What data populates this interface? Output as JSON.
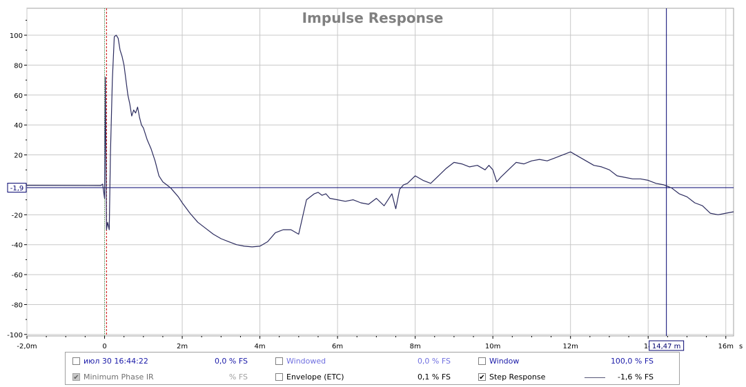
{
  "chart_data": {
    "type": "line",
    "title": "Impulse Response",
    "x_unit": "s",
    "xlim": [
      -2.0,
      16.2
    ],
    "ylim": [
      -101,
      118
    ],
    "x_ticks": [
      {
        "v": -2,
        "label": "-2,0m"
      },
      {
        "v": 0,
        "label": "0"
      },
      {
        "v": 2,
        "label": "2m"
      },
      {
        "v": 4,
        "label": "4m"
      },
      {
        "v": 6,
        "label": "6m"
      },
      {
        "v": 8,
        "label": "8m"
      },
      {
        "v": 10,
        "label": "10m"
      },
      {
        "v": 12,
        "label": "12m"
      },
      {
        "v": 14,
        "label": "14"
      },
      {
        "v": 16,
        "label": "16m"
      }
    ],
    "y_ticks": [
      100,
      80,
      60,
      40,
      20,
      0,
      -20,
      -40,
      -60,
      -80,
      -100
    ],
    "y_tick_labels": [
      "100",
      "80",
      "60",
      "40",
      "20",
      "",
      "-20",
      "-40",
      "-60",
      "-80",
      "-100"
    ],
    "grid": true,
    "series": [
      {
        "name": "Step Response",
        "color": "#2b2b5e",
        "x": [
          -2.0,
          -0.1,
          -0.05,
          0.0,
          0.02,
          0.05,
          0.08,
          0.12,
          0.15,
          0.2,
          0.25,
          0.3,
          0.35,
          0.4,
          0.45,
          0.5,
          0.55,
          0.6,
          0.65,
          0.7,
          0.75,
          0.8,
          0.85,
          0.9,
          0.95,
          1.0,
          1.1,
          1.2,
          1.3,
          1.4,
          1.5,
          1.6,
          1.7,
          1.8,
          1.9,
          2.0,
          2.2,
          2.4,
          2.6,
          2.8,
          3.0,
          3.2,
          3.4,
          3.6,
          3.8,
          4.0,
          4.2,
          4.4,
          4.5,
          4.6,
          4.8,
          5.0,
          5.2,
          5.4,
          5.5,
          5.6,
          5.7,
          5.8,
          6.0,
          6.2,
          6.4,
          6.6,
          6.8,
          7.0,
          7.2,
          7.4,
          7.5,
          7.6,
          7.7,
          7.8,
          8.0,
          8.2,
          8.4,
          8.6,
          8.8,
          9.0,
          9.2,
          9.4,
          9.6,
          9.8,
          9.9,
          10.0,
          10.1,
          10.2,
          10.4,
          10.6,
          10.8,
          11.0,
          11.2,
          11.4,
          11.6,
          11.8,
          12.0,
          12.2,
          12.4,
          12.6,
          12.8,
          13.0,
          13.2,
          13.4,
          13.6,
          13.8,
          14.0,
          14.2,
          14.4,
          14.6,
          14.8,
          15.0,
          15.2,
          15.4,
          15.6,
          15.8,
          16.0,
          16.2
        ],
        "y": [
          -0.3,
          -0.5,
          0.5,
          -9,
          72,
          -30,
          -25,
          -30,
          20,
          70,
          99,
          100,
          98,
          90,
          86,
          80,
          70,
          60,
          54,
          46,
          50,
          48,
          52,
          45,
          40,
          38,
          30,
          24,
          16,
          6,
          2,
          0,
          -2,
          -5,
          -8,
          -12,
          -19,
          -25,
          -29,
          -33,
          -36,
          -38,
          -40,
          -41,
          -41.5,
          -41,
          -38,
          -32,
          -31,
          -30,
          -30,
          -33,
          -10,
          -6,
          -5,
          -7,
          -6,
          -9,
          -10,
          -11,
          -10,
          -12,
          -13,
          -9,
          -14,
          -6,
          -16,
          -3,
          0,
          1,
          6,
          3,
          1,
          6,
          11,
          15,
          14,
          12,
          13,
          10,
          13,
          10,
          2,
          5,
          10,
          15,
          14,
          16,
          17,
          16,
          18,
          20,
          22,
          19,
          16,
          13,
          12,
          10,
          6,
          5,
          4,
          4,
          3,
          1,
          0,
          -2,
          -6,
          -8,
          -12,
          -14,
          -19,
          -20,
          -19,
          -18
        ]
      }
    ],
    "markers": {
      "red_dashed_x": 0.05,
      "blue_cursor_x": 14.47,
      "green_dotted_x": 0.0,
      "hline_y": -1.9,
      "hline_label": "-1,9",
      "cursor_label": "14,47 m",
      "x_unit_label": "s"
    },
    "colors": {
      "background": "#ffffff",
      "grid": "#c8c8c8",
      "axis": "#000000",
      "trace": "#2b2b5e",
      "cursor": "#00006e",
      "red_marker": "#cc0000",
      "title": "#808080"
    }
  },
  "legend": {
    "rows": [
      [
        {
          "label": "июл 30 16:44:22",
          "value": "0,0 % FS",
          "checked": false,
          "disabled": false,
          "label_color": "blue"
        },
        {
          "label": "Windowed",
          "value": "0,0 % FS",
          "checked": false,
          "disabled": false,
          "label_color": "lightblue"
        },
        {
          "label": "Window",
          "value": "100,0 % FS",
          "checked": false,
          "disabled": false,
          "label_color": "blue"
        }
      ],
      [
        {
          "label": "Minimum Phase IR",
          "value": "% FS",
          "checked": true,
          "disabled": true,
          "label_color": "grey"
        },
        {
          "label": "Envelope (ETC)",
          "value": "0,1 % FS",
          "checked": false,
          "disabled": false,
          "label_color": "black"
        },
        {
          "label": "Step Response",
          "value": "-1,6 % FS",
          "checked": true,
          "disabled": false,
          "label_color": "black"
        }
      ]
    ]
  }
}
